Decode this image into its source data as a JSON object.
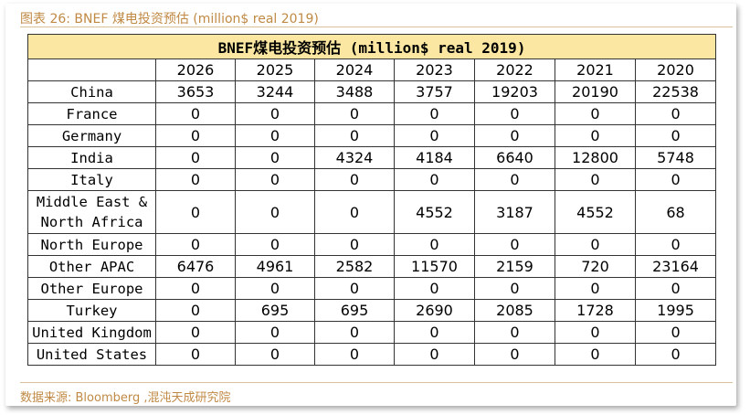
{
  "caption": "图表 26:  BNEF 煤电投资预估  (million$ real 2019)",
  "table": {
    "title": "BNEF煤电投资预估 (million$ real 2019)",
    "years": [
      "2026",
      "2025",
      "2024",
      "2023",
      "2022",
      "2021",
      "2020"
    ],
    "rows": [
      {
        "label": "China",
        "values": [
          "3653",
          "3244",
          "3488",
          "3757",
          "19203",
          "20190",
          "22538"
        ]
      },
      {
        "label": "France",
        "values": [
          "0",
          "0",
          "0",
          "0",
          "0",
          "0",
          "0"
        ]
      },
      {
        "label": "Germany",
        "values": [
          "0",
          "0",
          "0",
          "0",
          "0",
          "0",
          "0"
        ]
      },
      {
        "label": "India",
        "values": [
          "0",
          "0",
          "4324",
          "4184",
          "6640",
          "12800",
          "5748"
        ]
      },
      {
        "label": "Italy",
        "values": [
          "0",
          "0",
          "0",
          "0",
          "0",
          "0",
          "0"
        ]
      },
      {
        "label": "Middle East & North Africa",
        "values": [
          "0",
          "0",
          "0",
          "4552",
          "3187",
          "4552",
          "68"
        ]
      },
      {
        "label": "North Europe",
        "values": [
          "0",
          "0",
          "0",
          "0",
          "0",
          "0",
          "0"
        ]
      },
      {
        "label": "Other APAC",
        "values": [
          "6476",
          "4961",
          "2582",
          "11570",
          "2159",
          "720",
          "23164"
        ]
      },
      {
        "label": "Other Europe",
        "values": [
          "0",
          "0",
          "0",
          "0",
          "0",
          "0",
          "0"
        ]
      },
      {
        "label": "Turkey",
        "values": [
          "0",
          "695",
          "695",
          "2690",
          "2085",
          "1728",
          "1995"
        ]
      },
      {
        "label": "United Kingdom",
        "values": [
          "0",
          "0",
          "0",
          "0",
          "0",
          "0",
          "0"
        ]
      },
      {
        "label": "United States",
        "values": [
          "0",
          "0",
          "0",
          "0",
          "0",
          "0",
          "0"
        ]
      }
    ]
  },
  "source": "数据来源:  Bloomberg ,混沌天成研究院",
  "colors": {
    "title_bg": "#fbe7a1",
    "caption_text": "#c08a45",
    "rule": "#d9c29a"
  }
}
